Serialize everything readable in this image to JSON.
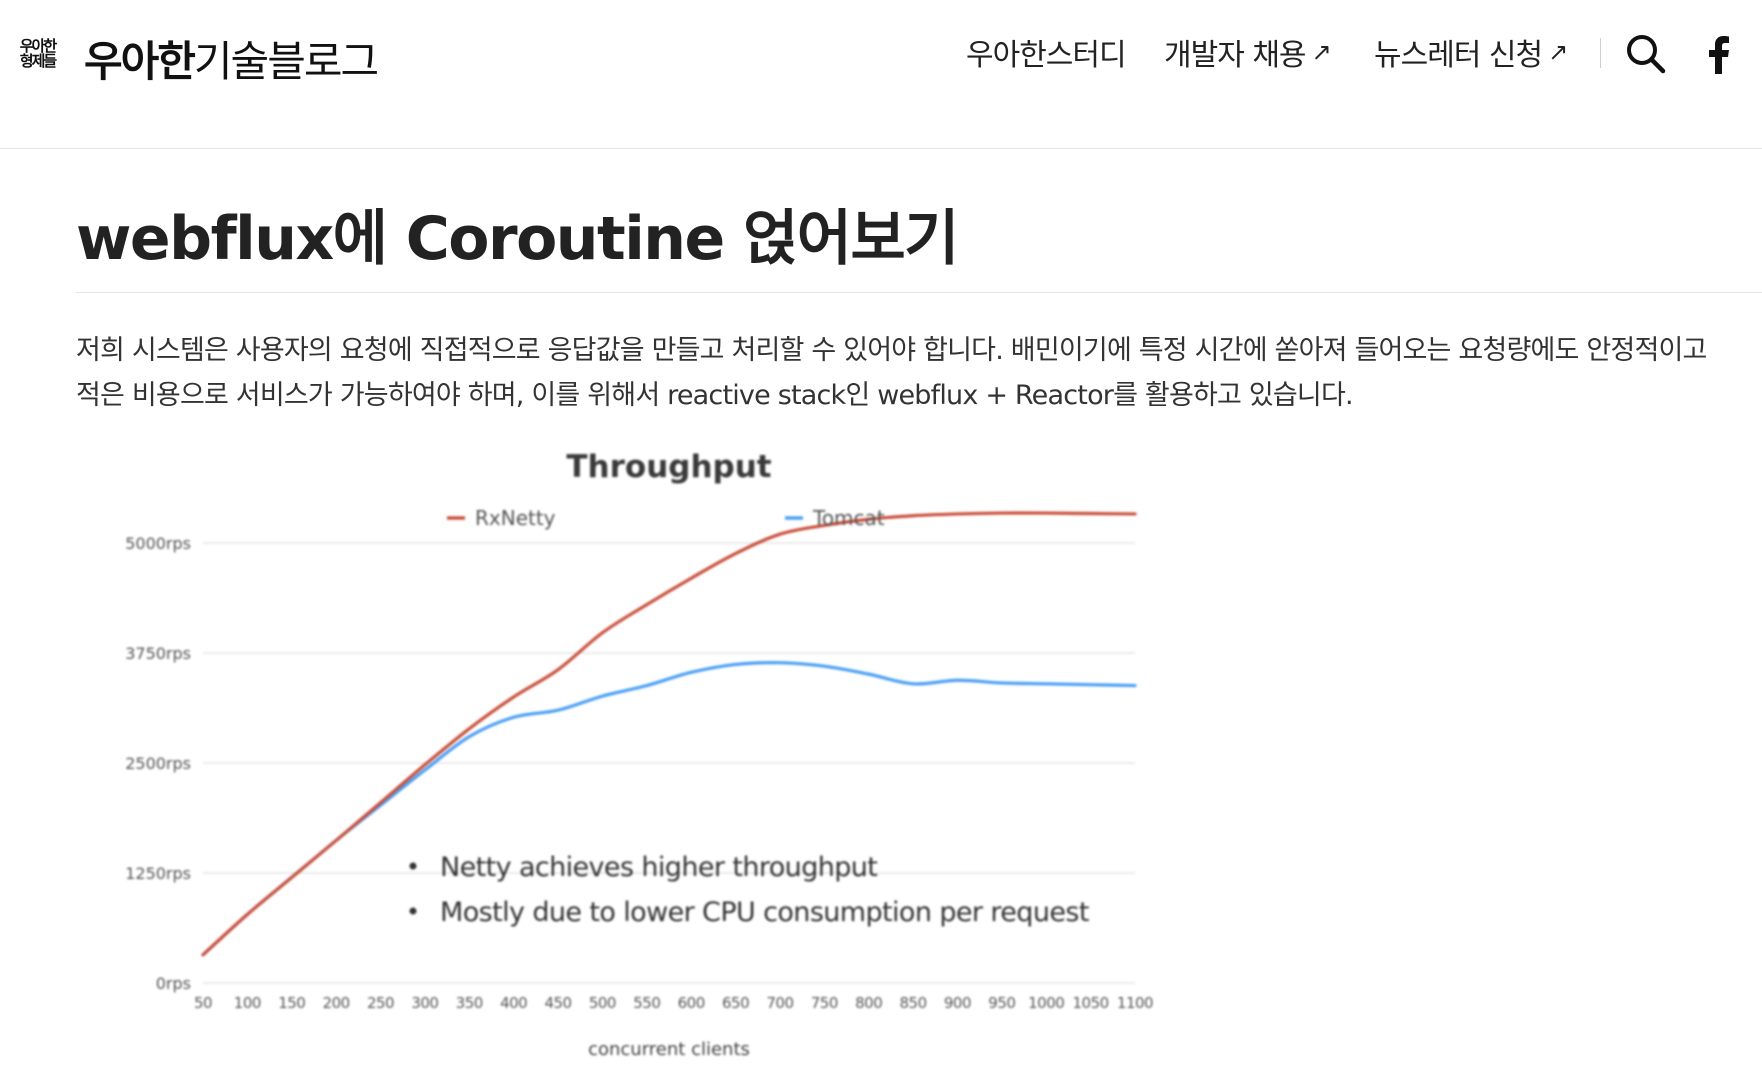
{
  "header": {
    "logo_mark_lines": [
      "우아한",
      "형제들"
    ],
    "logo_bold": "우아한",
    "logo_light": "기술블로그",
    "nav": [
      {
        "label": "우아한스터디",
        "external": false
      },
      {
        "label": "개발자 채용",
        "external": true,
        "arrow": "↗"
      },
      {
        "label": "뉴스레터 신청",
        "external": true,
        "arrow": "↗"
      }
    ],
    "search_icon": "search-icon",
    "facebook_icon": "facebook-icon"
  },
  "article": {
    "title": "webflux에 Coroutine 얹어보기",
    "paragraph": "저희 시스템은 사용자의 요청에 직접적으로 응답값을 만들고 처리할 수 있어야 합니다. 배민이기에 특정 시간에 쏟아져 들어오는 요청량에도 안정적이고 적은 비용으로 서비스가 가능하여야 하며, 이를 위해서 reactive stack인 webflux + Reactor를 활용하고 있습니다."
  },
  "chart_data": {
    "type": "line",
    "title": "Throughput",
    "xlabel": "concurrent clients",
    "ylabel": "",
    "x": [
      50,
      100,
      150,
      200,
      250,
      300,
      350,
      400,
      450,
      500,
      550,
      600,
      650,
      700,
      750,
      800,
      850,
      900,
      950,
      1000,
      1050,
      1100
    ],
    "x_tick_labels": [
      "50",
      "100",
      "150",
      "200",
      "250",
      "300",
      "350",
      "400",
      "450",
      "500",
      "550",
      "600",
      "650",
      "700",
      "750",
      "800",
      "850",
      "900",
      "950",
      "1000",
      "1050",
      "1100"
    ],
    "y_ticks": [
      0,
      1250,
      2500,
      3750,
      5000
    ],
    "y_tick_labels": [
      "0rps",
      "1250rps",
      "2500rps",
      "3750rps",
      "5000rps"
    ],
    "ylim": [
      0,
      5000
    ],
    "grid": true,
    "legend_position": "top",
    "series": [
      {
        "name": "RxNetty",
        "color": "#c9503c",
        "values": [
          320,
          780,
          1200,
          1620,
          2050,
          2480,
          2890,
          3250,
          3560,
          3980,
          4300,
          4600,
          4880,
          5100,
          5200,
          5270,
          5310,
          5330,
          5340,
          5340,
          5335,
          5330
        ]
      },
      {
        "name": "Tomcat",
        "color": "#4a9ff5",
        "values": [
          320,
          780,
          1200,
          1620,
          2020,
          2420,
          2800,
          3020,
          3100,
          3260,
          3380,
          3530,
          3620,
          3640,
          3600,
          3510,
          3400,
          3440,
          3410,
          3400,
          3390,
          3380
        ]
      }
    ],
    "annotations": [
      "Netty achieves higher throughput",
      "Mostly due to lower CPU consumption per request"
    ]
  }
}
